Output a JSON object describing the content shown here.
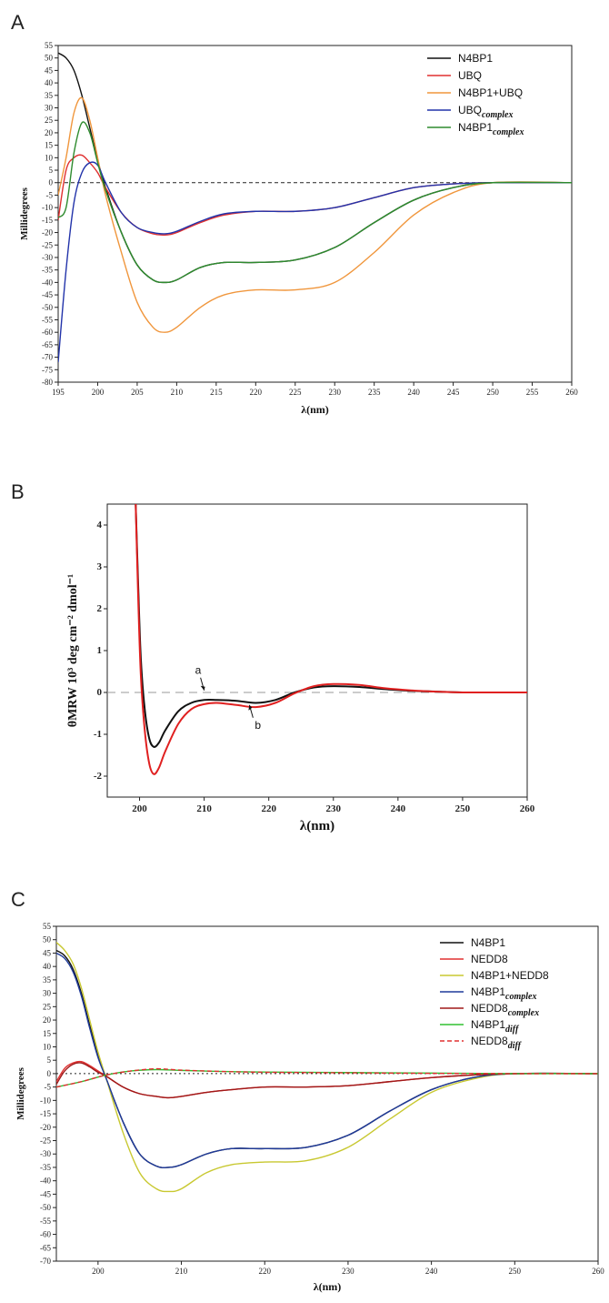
{
  "chart_data": [
    {
      "panel": "A",
      "type": "line",
      "xlabel": "λ(nm)",
      "ylabel": "Millidegrees",
      "xlim": [
        195,
        260
      ],
      "ylim": [
        -80,
        55
      ],
      "xticks": [
        195,
        200,
        205,
        210,
        215,
        220,
        225,
        230,
        235,
        240,
        245,
        250,
        255,
        260
      ],
      "yticks": [
        55,
        50,
        45,
        40,
        35,
        30,
        25,
        20,
        15,
        10,
        5,
        0,
        -5,
        -10,
        -15,
        -20,
        -25,
        -30,
        -35,
        -40,
        -45,
        -50,
        -55,
        -60,
        -65,
        -70,
        -75,
        -80
      ],
      "zero_line": "dashed",
      "legend_position": "top-right",
      "series": [
        {
          "name": "N4BP1",
          "color": "#111111",
          "x": [
            195,
            196,
            197,
            198,
            199,
            200,
            201,
            203,
            205,
            207,
            208.5,
            210,
            213,
            216,
            220,
            225,
            230,
            235,
            240,
            245,
            250,
            260
          ],
          "y": [
            52,
            50,
            45,
            35,
            22,
            9,
            -2,
            -20,
            -33,
            -39,
            -40,
            -39,
            -34,
            -32,
            -32,
            -31,
            -26,
            -16,
            -7,
            -2,
            0,
            0
          ]
        },
        {
          "name": "UBQ",
          "color": "#e03030",
          "x": [
            195,
            196,
            197,
            198,
            199,
            200,
            201,
            203,
            205,
            207,
            208.5,
            210,
            213,
            216,
            220,
            225,
            230,
            235,
            240,
            245,
            250,
            260
          ],
          "y": [
            -15,
            5,
            10,
            11,
            8,
            4,
            -2,
            -12,
            -18,
            -20.5,
            -21,
            -20,
            -16,
            -13,
            -11.5,
            -11.5,
            -10,
            -6,
            -2,
            -0.5,
            0,
            0
          ]
        },
        {
          "name": "N4BP1+UBQ",
          "color": "#f0963c",
          "x": [
            195,
            196,
            197,
            198,
            199,
            200,
            201,
            203,
            205,
            207,
            208.5,
            210,
            213,
            216,
            220,
            225,
            230,
            235,
            240,
            245,
            250,
            260
          ],
          "y": [
            -5,
            10,
            28,
            34,
            25,
            10,
            -5,
            -28,
            -48,
            -58,
            -60,
            -58,
            -50,
            -45,
            -43,
            -43,
            -40,
            -28,
            -13,
            -4,
            0,
            0
          ]
        },
        {
          "name": "UBQ",
          "sub": "complex",
          "color": "#2233aa",
          "x": [
            195,
            196,
            197,
            198,
            199,
            200,
            201,
            203,
            205,
            207,
            208.5,
            210,
            213,
            216,
            220,
            225,
            230,
            235,
            240,
            245,
            250,
            260
          ],
          "y": [
            -72,
            -35,
            -8,
            4,
            8,
            7,
            0,
            -12,
            -18,
            -20,
            -20.5,
            -19.5,
            -15.5,
            -12.5,
            -11.5,
            -11.5,
            -10,
            -6,
            -2,
            -0.5,
            0,
            0
          ]
        },
        {
          "name": "N4BP1",
          "sub": "complex",
          "color": "#2e8b2e",
          "x": [
            195,
            196,
            197,
            198,
            199,
            200,
            201,
            203,
            205,
            207,
            208.5,
            210,
            213,
            216,
            220,
            225,
            230,
            235,
            240,
            245,
            250,
            260
          ],
          "y": [
            -14,
            -10,
            12,
            24,
            20,
            8,
            -3,
            -20,
            -33,
            -39,
            -40,
            -39,
            -34,
            -32,
            -32,
            -31,
            -26,
            -16,
            -7,
            -2,
            0,
            0
          ]
        }
      ]
    },
    {
      "panel": "B",
      "type": "line",
      "xlabel": "λ(nm)",
      "ylabel": "θMRW 10³ deg cm⁻² dmol⁻¹",
      "xlim": [
        195,
        260
      ],
      "ylim": [
        -2.5,
        4.5
      ],
      "xticks": [
        200,
        210,
        220,
        230,
        240,
        250,
        260
      ],
      "yticks": [
        -2,
        -1,
        0,
        1,
        2,
        3,
        4
      ],
      "zero_line": "dashed",
      "series": [
        {
          "label": "a",
          "color": "#111111",
          "x": [
            199.4,
            199.8,
            200.2,
            200.8,
            201.5,
            202.2,
            203,
            204,
            206,
            208,
            210,
            212,
            215,
            218,
            221,
            224,
            227,
            230,
            234,
            238,
            242,
            246,
            250,
            255,
            260
          ],
          "y": [
            4.5,
            2.5,
            0.8,
            -0.4,
            -1.1,
            -1.3,
            -1.2,
            -0.9,
            -0.45,
            -0.25,
            -0.18,
            -0.18,
            -0.2,
            -0.25,
            -0.18,
            0.0,
            0.12,
            0.15,
            0.13,
            0.08,
            0.04,
            0.02,
            0.0,
            0.0,
            0.0
          ]
        },
        {
          "label": "b",
          "color": "#e02020",
          "x": [
            199.4,
            199.8,
            200.2,
            200.8,
            201.5,
            202.2,
            203,
            204,
            206,
            208,
            210,
            212,
            215,
            218,
            221,
            224,
            227,
            230,
            234,
            238,
            242,
            246,
            250,
            255,
            260
          ],
          "y": [
            4.5,
            2.2,
            0.4,
            -0.9,
            -1.7,
            -1.95,
            -1.8,
            -1.4,
            -0.75,
            -0.4,
            -0.28,
            -0.25,
            -0.3,
            -0.35,
            -0.25,
            -0.02,
            0.15,
            0.2,
            0.18,
            0.1,
            0.05,
            0.02,
            0.0,
            0.0,
            0.0
          ]
        }
      ],
      "annotations": [
        {
          "text": "a",
          "x": 210,
          "y": 0.05
        },
        {
          "text": "b",
          "x": 217,
          "y": -0.3
        }
      ]
    },
    {
      "panel": "C",
      "type": "line",
      "xlabel": "λ(nm)",
      "ylabel": "Millidegrees",
      "xlim": [
        195,
        260
      ],
      "ylim": [
        -70,
        55
      ],
      "xticks": [
        200,
        210,
        220,
        230,
        240,
        250,
        260
      ],
      "yticks": [
        55,
        50,
        45,
        40,
        35,
        30,
        25,
        20,
        15,
        10,
        5,
        0,
        -5,
        -10,
        -15,
        -20,
        -25,
        -30,
        -35,
        -40,
        -45,
        -50,
        -55,
        -60,
        -65,
        -70
      ],
      "zero_line": "dotted",
      "legend_position": "top-right",
      "series": [
        {
          "name": "N4BP1",
          "color": "#111111",
          "x": [
            195,
            196,
            197,
            198,
            199,
            200,
            201,
            203,
            205,
            207,
            208.5,
            210,
            213,
            216,
            220,
            225,
            230,
            235,
            240,
            245,
            250,
            260
          ],
          "y": [
            46,
            44,
            39,
            30,
            18,
            7,
            -2,
            -18,
            -30,
            -34.5,
            -35,
            -34,
            -30,
            -28,
            -28,
            -27.5,
            -23,
            -14,
            -6,
            -1.5,
            0,
            0
          ]
        },
        {
          "name": "NEDD8",
          "color": "#e03030",
          "x": [
            195,
            196,
            197,
            198,
            199,
            200,
            201,
            203,
            205,
            207,
            208.5,
            210,
            213,
            216,
            220,
            225,
            230,
            235,
            240,
            245,
            250,
            260
          ],
          "y": [
            -3,
            2,
            4,
            4.5,
            3,
            1,
            -1,
            -5,
            -7.5,
            -8.5,
            -9,
            -8.5,
            -7,
            -6,
            -5,
            -5,
            -4.5,
            -3,
            -1.5,
            -0.5,
            0,
            0
          ]
        },
        {
          "name": "N4BP1+NEDD8",
          "color": "#c8c830",
          "x": [
            195,
            196,
            197,
            198,
            199,
            200,
            201,
            203,
            205,
            207,
            208.5,
            210,
            213,
            216,
            220,
            225,
            230,
            235,
            240,
            245,
            250,
            260
          ],
          "y": [
            49,
            46,
            41,
            32,
            20,
            8,
            -2,
            -22,
            -37,
            -43,
            -44,
            -43,
            -37,
            -34,
            -33,
            -32.5,
            -27.5,
            -17,
            -7,
            -2,
            0,
            0
          ]
        },
        {
          "name": "N4BP1",
          "sub": "complex",
          "color": "#1f3a9a",
          "x": [
            195,
            196,
            197,
            198,
            199,
            200,
            201,
            203,
            205,
            207,
            208.5,
            210,
            213,
            216,
            220,
            225,
            230,
            235,
            240,
            245,
            250,
            260
          ],
          "y": [
            45,
            43,
            38,
            29,
            17,
            6,
            -2,
            -18,
            -30,
            -34.5,
            -35,
            -34,
            -30,
            -28,
            -28,
            -27.5,
            -23,
            -14,
            -6,
            -1.5,
            0,
            0
          ]
        },
        {
          "name": "NEDD8",
          "sub": "complex",
          "color": "#a01818",
          "x": [
            195,
            196,
            197,
            198,
            199,
            200,
            201,
            203,
            205,
            207,
            208.5,
            210,
            213,
            216,
            220,
            225,
            230,
            235,
            240,
            245,
            250,
            260
          ],
          "y": [
            -4,
            1,
            3.5,
            4,
            2.5,
            0.5,
            -1,
            -5,
            -7.5,
            -8.5,
            -9,
            -8.5,
            -7,
            -6,
            -5,
            -5,
            -4.5,
            -3,
            -1.5,
            -0.5,
            0,
            0
          ]
        },
        {
          "name": "N4BP1",
          "sub": "diff",
          "color": "#30c030",
          "x": [
            195,
            198,
            201,
            204,
            207,
            210,
            215,
            220,
            230,
            240,
            250,
            260
          ],
          "y": [
            -5,
            -3,
            -0.5,
            1,
            1.5,
            1.2,
            0.8,
            0.6,
            0.4,
            0.2,
            0,
            0
          ]
        },
        {
          "name": "NEDD8",
          "sub": "diff",
          "color": "#e03030",
          "dashed": true,
          "x": [
            195,
            198,
            201,
            204,
            207,
            210,
            215,
            220,
            230,
            240,
            250,
            260
          ],
          "y": [
            -5,
            -3,
            -0.5,
            1,
            1.8,
            1.3,
            0.8,
            0.5,
            0.3,
            0.1,
            0,
            0
          ]
        }
      ]
    }
  ]
}
